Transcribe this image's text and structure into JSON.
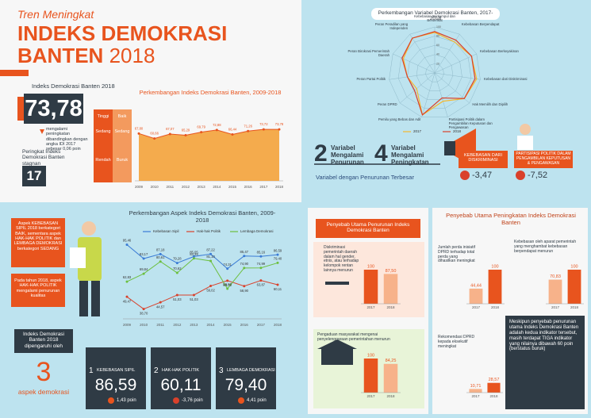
{
  "header": {
    "kicker": "Tren Meningkat",
    "title_line1": "INDEKS DEMOKRASI",
    "title_line2": "BANTEN",
    "title_year": "2018"
  },
  "idi": {
    "label": "Indeks Demokrasi Banten 2018",
    "value": "73,78",
    "note": "mengalami peningkatan dibandingkan dengan angka IDI 2017 sebesar 0,06 poin",
    "rank_label": "Peringkat Indeks Demokrasi Banten stagnan",
    "rank": "17"
  },
  "scale": [
    {
      "level": "Tinggi",
      "category": "Baik"
    },
    {
      "level": "Sedang",
      "category": "Sedang"
    },
    {
      "level": "Rendah",
      "category": "Buruk"
    }
  ],
  "variables": {
    "down_count": "2",
    "down_label": "Variabel Mengalami Penurunan",
    "up_count": "4",
    "up_label": "Variabel Mengalami Peningkatan",
    "largest_label": "Variabel dengan Penurunan Terbesar",
    "largest": [
      {
        "name": "KEBEBASAN DARI DISKRIMINASI",
        "change": "-3,47"
      },
      {
        "name": "PARTISIPASI POLITIK DALAM PENGAMBILAN KEPUTUSAN & PENGAWASAN",
        "change": "-7,52"
      }
    ]
  },
  "aspect_notes": [
    "Aspek KEBEBASAN SIPIL 2018 berkategori BAIK, sementara aspek HAK-HAK POLITIK dan LEMBAGA DEMOKRASI berkategori SEDANG",
    "Pada tahun 2018, aspek HAK-HAK POLITIK mengalami penurunan kualitas"
  ],
  "influence": {
    "label": "Indeks Demokrasi Banten 2018 dipengaruhi oleh",
    "count": "3",
    "unit": "aspek demokrasi",
    "aspects": [
      {
        "rank": "1",
        "name": "KEBEBASAN SIPIL",
        "value": "86,59",
        "change": "1,43 poin"
      },
      {
        "rank": "2",
        "name": "HAK-HAK POLITIK",
        "value": "60,11",
        "change": "-3,76 poin"
      },
      {
        "rank": "3",
        "name": "LEMBAGA DEMOKRASI",
        "value": "79,40",
        "change": "4,41 poin"
      }
    ]
  },
  "decline": {
    "title": "Penyebab Utama Penurunan Indeks Demokrasi Banten"
  },
  "increase": {
    "title": "Penyebab Utama Peningkatan Indeks Demokrasi Banten",
    "note": "Meskipun penyebab penurunan utama Indeks Demokrasi Banten adalah kedua indikator tersebut, masih terdapat TIGA indikator yang nilainya dibawah 60 poin (berstatus buruk)"
  },
  "chart_data": [
    {
      "type": "area",
      "title": "Perkembangan Indeks Demokrasi Banten, 2009-2018",
      "categories": [
        "2009",
        "2010",
        "2011",
        "2012",
        "2013",
        "2014",
        "2015",
        "2016",
        "2017",
        "2018"
      ],
      "values": [
        67.8,
        60.66,
        67.07,
        65.29,
        69.79,
        72.88,
        66.44,
        71.26,
        73.72,
        73.78
      ],
      "value_labels": [
        "67,80",
        "60,66",
        "67,07",
        "65,29",
        "69,79",
        "72,88",
        "66,44",
        "71,26",
        "73,72",
        "73,78"
      ],
      "color": "#f3a23a",
      "ylim": [
        0,
        100
      ]
    },
    {
      "type": "radar",
      "title": "Perkembangan Variabel Demokrasi Banten, 2017-2018",
      "categories": [
        "Kebebasan Berkumpul dan Berserikat",
        "Kebebasan Berpendapat",
        "Kebebasan Berkeyakinan",
        "Kebebasan dari Diskriminasi",
        "Hak Memilih dan Dipilih",
        "Partisipasi Politik dalam Pengambilan Keputusan dan Pengawasan",
        "Pemilu yang Bebas dan Adil",
        "Peran DPRD",
        "Peran Partai Politik",
        "Peran Birokrasi Pemerintah Daerah",
        "Peran Peradilan yang Independen"
      ],
      "series": [
        {
          "name": "2017",
          "color": "#f5b82e",
          "values": [
            88,
            80,
            88,
            92,
            85,
            64,
            95,
            52,
            60,
            75,
            90
          ]
        },
        {
          "name": "2018",
          "color": "#d9412b",
          "values": [
            90,
            85,
            88,
            88.53,
            85,
            56.48,
            95,
            58,
            60,
            78,
            90
          ]
        }
      ],
      "rlim": [
        0,
        100
      ],
      "rticks": [
        20,
        40,
        60,
        80,
        100
      ]
    },
    {
      "type": "line",
      "title": "Perkembangan Aspek Indeks Demokrasi Banten, 2009-2018",
      "categories": [
        "2009",
        "2010",
        "2011",
        "2012",
        "2013",
        "2014",
        "2015",
        "2016",
        "2017",
        "2018"
      ],
      "series": [
        {
          "name": "Kebebasan Sipil",
          "color": "#3a7bd5",
          "values": [
            95.46,
            83.17,
            87.18,
            79.28,
            85.05,
            87.22,
            74.31,
            85.47,
            85.16,
            86.59
          ],
          "value_labels": [
            "95,46",
            "83,17",
            "87,18",
            "79,28",
            "85,05",
            "87,22",
            "74,31",
            "85,47",
            "85,16",
            "86,59"
          ]
        },
        {
          "name": "Hak-hak Politik",
          "color": "#d9412b",
          "values": [
            49.47,
            38.7,
            44.57,
            51.03,
            51.03,
            59.02,
            63.72,
            58.9,
            63.87,
            60.11
          ],
          "value_labels": [
            "49,47",
            "38,70",
            "44,57",
            "51,03",
            "51,03",
            "59,02",
            "63,72",
            "58,90",
            "63,87",
            "60,11"
          ]
        },
        {
          "name": "Lembaga Demokrasi",
          "color": "#6cbf3f",
          "values": [
            62.83,
            69.84,
            80.61,
            70.62,
            83.39,
            81.1,
            56.6,
            74.9,
            74.99,
            79.4
          ],
          "value_labels": [
            "62,83",
            "69,84",
            "80,61",
            "70,62",
            "83,39",
            "81,10",
            "56,60",
            "74,90",
            "74,99",
            "79,40"
          ]
        }
      ],
      "ylim": [
        30,
        100
      ]
    },
    {
      "type": "bar",
      "title": "Diskriminasi pemerintah daerah dalam hal gender, etnis, atau terhadap kelompok rentan lainnya menurun",
      "categories": [
        "2017",
        "2018"
      ],
      "values": [
        100,
        87.5
      ],
      "value_labels": [
        "100",
        "87,50"
      ],
      "colors": [
        "#e8541e",
        "#f7b28a"
      ],
      "ylim": [
        0,
        100
      ]
    },
    {
      "type": "bar",
      "title": "Pengaduan masyarakat mengenai penyelenggaraan pemerintahan menurun",
      "categories": [
        "2017",
        "2018"
      ],
      "values": [
        100,
        84.25
      ],
      "value_labels": [
        "100",
        "84,25"
      ],
      "colors": [
        "#e8541e",
        "#f7b28a"
      ],
      "ylim": [
        0,
        100
      ]
    },
    {
      "type": "bar",
      "title": "Jumlah perda inisiatif DPRD terhadap total perda yang dihasilkan meningkat",
      "categories": [
        "2017",
        "2018"
      ],
      "values": [
        44.44,
        100
      ],
      "value_labels": [
        "44,44",
        "100"
      ],
      "colors": [
        "#f7b28a",
        "#e8541e"
      ],
      "ylim": [
        0,
        100
      ]
    },
    {
      "type": "bar",
      "title": "Kebebasan oleh aparat pemerintah yang menghambat kebebasan berpendapat menurun",
      "categories": [
        "2017",
        "2018"
      ],
      "values": [
        70.83,
        100
      ],
      "value_labels": [
        "70,83",
        "100"
      ],
      "colors": [
        "#f7b28a",
        "#e8541e"
      ],
      "ylim": [
        0,
        100
      ]
    },
    {
      "type": "bar",
      "title": "Rekomendasi DPRD kepada eksekutif meningkat",
      "categories": [
        "2017",
        "2018"
      ],
      "values": [
        10.71,
        28.57
      ],
      "value_labels": [
        "10,71",
        "28,57"
      ],
      "colors": [
        "#f7b28a",
        "#e8541e"
      ],
      "ylim": [
        0,
        100
      ]
    }
  ]
}
